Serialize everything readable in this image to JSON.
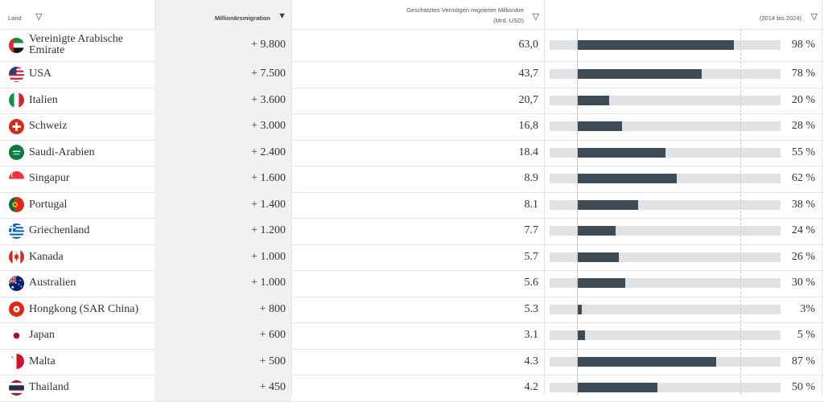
{
  "header": {
    "land": "Land",
    "migration": "Millionärsmigration",
    "wealth_line1": "Geschätztes Vermögen migrierter Millionäre",
    "wealth_line2": "(Mrd. USD)",
    "growth": "(2014 bis 2024)"
  },
  "colors": {
    "bar": "#3d4b57",
    "track": "#e1e2e3",
    "highlight_col": "#f1f1f1"
  },
  "chart_data": {
    "type": "table",
    "columns": [
      "Land",
      "Millionärsmigration",
      "Geschätztes Vermögen migrierter Millionäre (Mrd. USD)",
      "(2014 bis 2024)"
    ],
    "rows": [
      {
        "country": "Vereinigte Arabische Emirate",
        "migration": "+ 9.800",
        "wealth": "63,0",
        "growth_pct": 98,
        "growth_label": "98 %",
        "flag": "uae-flag"
      },
      {
        "country": "USA",
        "migration": "+ 7.500",
        "wealth": "43,7",
        "growth_pct": 78,
        "growth_label": "78 %",
        "flag": "usa-flag"
      },
      {
        "country": "Italien",
        "migration": "+ 3.600",
        "wealth": "20,7",
        "growth_pct": 20,
        "growth_label": "20 %",
        "flag": "italy-flag"
      },
      {
        "country": "Schweiz",
        "migration": "+ 3.000",
        "wealth": "16,8",
        "growth_pct": 28,
        "growth_label": "28 %",
        "flag": "switzerland-flag"
      },
      {
        "country": "Saudi-Arabien",
        "migration": "+ 2.400",
        "wealth": "18.4",
        "growth_pct": 55,
        "growth_label": "55 %",
        "flag": "saudi-arabia-flag"
      },
      {
        "country": "Singapur",
        "migration": "+ 1.600",
        "wealth": "8.9",
        "growth_pct": 62,
        "growth_label": "62 %",
        "flag": "singapore-flag"
      },
      {
        "country": "Portugal",
        "migration": "+ 1.400",
        "wealth": "8.1",
        "growth_pct": 38,
        "growth_label": "38 %",
        "flag": "portugal-flag"
      },
      {
        "country": "Griechenland",
        "migration": "+ 1.200",
        "wealth": "7.7",
        "growth_pct": 24,
        "growth_label": "24 %",
        "flag": "greece-flag"
      },
      {
        "country": "Kanada",
        "migration": "+ 1.000",
        "wealth": "5.7",
        "growth_pct": 26,
        "growth_label": "26 %",
        "flag": "canada-flag"
      },
      {
        "country": "Australien",
        "migration": "+ 1.000",
        "wealth": "5.6",
        "growth_pct": 30,
        "growth_label": "30 %",
        "flag": "australia-flag"
      },
      {
        "country": "Hongkong (SAR China)",
        "migration": "+ 800",
        "wealth": "5.3",
        "growth_pct": 3,
        "growth_label": "3%",
        "flag": "hong-kong-flag"
      },
      {
        "country": "Japan",
        "migration": "+ 600",
        "wealth": "3.1",
        "growth_pct": 5,
        "growth_label": "5 %",
        "flag": "japan-flag"
      },
      {
        "country": "Malta",
        "migration": "+ 500",
        "wealth": "4.3",
        "growth_pct": 87,
        "growth_label": "87 %",
        "flag": "malta-flag"
      },
      {
        "country": "Thailand",
        "migration": "+ 450",
        "wealth": "4.2",
        "growth_pct": 50,
        "growth_label": "50 %",
        "flag": "thailand-flag"
      }
    ]
  }
}
